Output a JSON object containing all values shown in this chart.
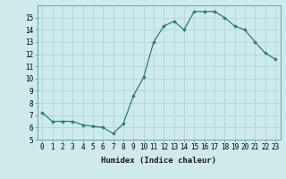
{
  "x": [
    0,
    1,
    2,
    3,
    4,
    5,
    6,
    7,
    8,
    9,
    10,
    11,
    12,
    13,
    14,
    15,
    16,
    17,
    18,
    19,
    20,
    21,
    22,
    23
  ],
  "y": [
    7.2,
    6.5,
    6.5,
    6.5,
    6.2,
    6.1,
    6.0,
    5.5,
    6.3,
    8.6,
    10.1,
    13.0,
    14.3,
    14.7,
    14.0,
    15.5,
    15.5,
    15.5,
    15.0,
    14.3,
    14.0,
    13.0,
    12.1,
    11.6
  ],
  "line_color": "#2e7d6e",
  "marker": "D",
  "marker_size": 1.8,
  "bg_color": "#ceeaea",
  "grid_color": "#aed8d8",
  "xlabel": "Humidex (Indice chaleur)",
  "ylim": [
    5,
    16
  ],
  "xlim": [
    -0.5,
    23.5
  ],
  "yticks": [
    5,
    6,
    7,
    8,
    9,
    10,
    11,
    12,
    13,
    14,
    15
  ],
  "xticks": [
    0,
    1,
    2,
    3,
    4,
    5,
    6,
    7,
    8,
    9,
    10,
    11,
    12,
    13,
    14,
    15,
    16,
    17,
    18,
    19,
    20,
    21,
    22,
    23
  ],
  "xtick_labels": [
    "0",
    "1",
    "2",
    "3",
    "4",
    "5",
    "6",
    "7",
    "8",
    "9",
    "10",
    "11",
    "12",
    "13",
    "14",
    "15",
    "16",
    "17",
    "18",
    "19",
    "20",
    "21",
    "22",
    "23"
  ],
  "label_fontsize": 6.5,
  "tick_fontsize": 5.5
}
